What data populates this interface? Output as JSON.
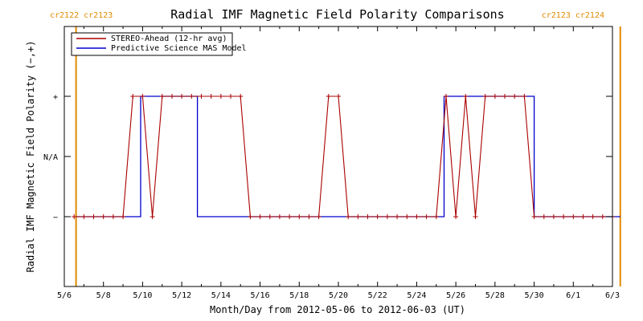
{
  "chart_data": {
    "type": "line",
    "title": "Radial IMF Magnetic Field Polarity Comparisons",
    "xlabel": "Month/Day from 2012-05-06 to 2012-06-03 (UT)",
    "ylabel": "Radial IMF Magnetic Field Polarity (−,+)",
    "x_range": [
      "2012-05-06",
      "2012-06-03"
    ],
    "x_ticks": [
      "5/6",
      "5/8",
      "5/10",
      "5/12",
      "5/14",
      "5/16",
      "5/18",
      "5/20",
      "5/22",
      "5/24",
      "5/26",
      "5/28",
      "5/30",
      "6/1",
      "6/3"
    ],
    "y_ticks": [
      "+",
      "N/A",
      "−"
    ],
    "carrington_markers": [
      {
        "date": "2012-05-06.6",
        "label": "cr2122 cr2123",
        "side": "left"
      },
      {
        "date": "2012-06-03.4",
        "label": "cr2123 cr2124",
        "side": "right"
      }
    ],
    "legend": {
      "position": "top-left"
    },
    "series": [
      {
        "name": "STEREO-Ahead (12-hr avg)",
        "color": "#aa0000",
        "marker": "plus",
        "day_offsets": [
          0.5,
          1,
          1.5,
          2,
          2.5,
          3,
          3.5,
          4,
          4.5,
          5,
          5.5,
          6,
          6.5,
          7,
          7.5,
          8,
          8.5,
          9,
          9.5,
          10,
          10.5,
          11,
          11.5,
          12,
          12.5,
          13,
          13.5,
          14,
          14.5,
          15,
          15.5,
          16,
          16.5,
          17,
          17.5,
          18,
          18.5,
          19,
          19.5,
          20,
          20.5,
          21,
          21.5,
          22,
          22.5,
          23,
          23.5,
          24,
          24.5,
          25,
          25.5,
          26,
          26.5,
          27,
          27.5,
          28
        ],
        "values": [
          "-",
          "-",
          "-",
          "-",
          "-",
          "-",
          "+",
          "+",
          "-",
          "+",
          "+",
          "+",
          "+",
          "+",
          "+",
          "+",
          "+",
          "+",
          "-",
          "-",
          "-",
          "-",
          "-",
          "-",
          "-",
          "-",
          "+",
          "+",
          "-",
          "-",
          "-",
          "-",
          "-",
          "-",
          "-",
          "-",
          "-",
          "-",
          "+",
          "-",
          "+",
          "-",
          "+",
          "+",
          "+",
          "+",
          "+",
          "-",
          "-",
          "-",
          "-",
          "-",
          "-",
          "-",
          "-",
          "-"
        ]
      },
      {
        "name": "Predictive Science MAS Model",
        "color": "#0000cc",
        "segments": [
          {
            "start": "2012-05-06.6",
            "end": "2012-05-09.9",
            "value": "-"
          },
          {
            "start": "2012-05-09.9",
            "end": "2012-05-12.8",
            "value": "+"
          },
          {
            "start": "2012-05-12.8",
            "end": "2012-05-25.4",
            "value": "-"
          },
          {
            "start": "2012-05-25.4",
            "end": "2012-05-30.0",
            "value": "+"
          },
          {
            "start": "2012-05-30.0",
            "end": "2012-06-03.4",
            "value": "-"
          }
        ]
      }
    ]
  }
}
